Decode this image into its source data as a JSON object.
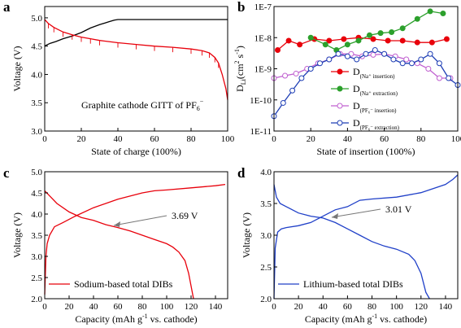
{
  "chart_data": [
    {
      "panel": "a",
      "type": "line",
      "xlabel": "State of charge (100%)",
      "ylabel": "Voltage (V)",
      "xlim": [
        0,
        100
      ],
      "ylim": [
        3.0,
        5.2
      ],
      "xticks": [
        0,
        20,
        40,
        60,
        80,
        100
      ],
      "yticks": [
        3.0,
        3.5,
        4.0,
        4.5,
        5.0
      ],
      "annotation": "Graphite cathode GITT of PF",
      "annotation_sub": "6",
      "annotation_sup": "−",
      "series": [
        {
          "color": "#000000",
          "x": [
            0,
            1,
            3,
            6,
            10,
            15,
            20,
            25,
            30,
            35,
            38,
            40,
            50,
            60,
            70,
            80,
            90,
            100
          ],
          "y": [
            4.5,
            4.52,
            4.55,
            4.58,
            4.63,
            4.68,
            4.74,
            4.82,
            4.88,
            4.93,
            4.96,
            4.97,
            4.97,
            4.97,
            4.97,
            4.97,
            4.97,
            4.97
          ]
        },
        {
          "color": "#e8000b",
          "x": [
            0,
            2,
            5,
            10,
            15,
            20,
            25,
            30,
            40,
            50,
            60,
            70,
            80,
            86,
            90,
            93,
            95,
            97,
            99,
            100
          ],
          "y": [
            4.97,
            4.9,
            4.83,
            4.75,
            4.7,
            4.66,
            4.63,
            4.6,
            4.56,
            4.53,
            4.5,
            4.48,
            4.45,
            4.42,
            4.38,
            4.3,
            4.2,
            4.0,
            3.75,
            3.55
          ]
        }
      ]
    },
    {
      "panel": "b",
      "type": "line",
      "xlabel": "State of insertion (100%)",
      "ylabel": "D",
      "ylabel_sub": "Li",
      "ylabel_unit": "(cm",
      "ylabel_unit_sup1": "2",
      "ylabel_unit_mid": " s",
      "ylabel_unit_sup2": "-1",
      "ylabel_unit_end": ")",
      "yscale": "log",
      "xlim": [
        0,
        100
      ],
      "ylim": [
        1e-11,
        1e-07
      ],
      "xticks": [
        0,
        20,
        40,
        60,
        80,
        100
      ],
      "yticks": [
        1e-11,
        1e-10,
        1e-09,
        1e-08,
        1e-07
      ],
      "ytick_labels": [
        "1E-11",
        "1E-10",
        "1E-9",
        "1E-8",
        "1E-7"
      ],
      "legend_position": "right",
      "series": [
        {
          "name": "D",
          "name_sub": "(Na⁺ insertion)",
          "color": "#e8000b",
          "marker": "filled",
          "x": [
            2,
            8,
            14,
            22,
            30,
            38,
            46,
            54,
            62,
            70,
            78,
            86,
            94
          ],
          "y": [
            4e-09,
            8e-09,
            6e-09,
            9e-09,
            8e-09,
            9e-09,
            1e-08,
            9e-09,
            8e-09,
            8e-09,
            7e-09,
            7e-09,
            9e-09
          ]
        },
        {
          "name": "D",
          "name_sub": "(Na⁺ extraction)",
          "color": "#2ca02c",
          "marker": "filled",
          "x": [
            20,
            28,
            34,
            40,
            46,
            52,
            58,
            64,
            70,
            78,
            85,
            92
          ],
          "y": [
            1e-08,
            6e-09,
            4e-09,
            6e-09,
            8e-09,
            1.2e-08,
            1.4e-08,
            1.5e-08,
            2e-08,
            4e-08,
            7e-08,
            6e-08
          ]
        },
        {
          "name": "D",
          "name_sub": "(PF₆⁻ insertion)",
          "color": "#c060d0",
          "marker": "open",
          "x": [
            0,
            6,
            12,
            18,
            24,
            30,
            36,
            42,
            48,
            54,
            60,
            66,
            72,
            78,
            84,
            90,
            96
          ],
          "y": [
            5e-10,
            6e-10,
            7e-10,
            1e-09,
            1.5e-09,
            2e-09,
            3e-09,
            3e-09,
            2.5e-09,
            2.8e-09,
            3e-09,
            2.5e-09,
            2e-09,
            1.5e-09,
            1e-09,
            5e-10,
            5e-10
          ]
        },
        {
          "name": "D",
          "name_sub": "(PF₆⁻ extraction)",
          "color": "#1f3fb5",
          "marker": "open",
          "x": [
            0,
            5,
            10,
            15,
            20,
            25,
            30,
            35,
            40,
            45,
            50,
            55,
            60,
            65,
            70,
            75,
            80,
            85,
            90,
            95,
            100
          ],
          "y": [
            3e-11,
            8e-11,
            2e-10,
            5e-10,
            1e-09,
            1.5e-09,
            2e-09,
            3e-09,
            2.5e-09,
            2e-09,
            3e-09,
            4e-09,
            3e-09,
            2e-09,
            1.5e-09,
            1.5e-09,
            2e-09,
            3e-09,
            1.5e-09,
            5e-10,
            3e-10
          ]
        }
      ]
    },
    {
      "panel": "c",
      "type": "line",
      "xlabel": "Capacity (mAh g",
      "xlabel_sup": "-1",
      "xlabel_end": " vs. cathode)",
      "ylabel": "Voltage (V)",
      "xlim": [
        0,
        150
      ],
      "ylim": [
        2.0,
        5.0
      ],
      "xticks": [
        0,
        20,
        40,
        60,
        80,
        100,
        120,
        140
      ],
      "yticks": [
        2.0,
        2.5,
        3.0,
        3.5,
        4.0,
        4.5,
        5.0
      ],
      "annotation": "3.69 V",
      "legend_label": "Sodium-based total DIBs",
      "series": [
        {
          "color": "#e8000b",
          "x": [
            0,
            1,
            2,
            4,
            8,
            15,
            25,
            40,
            60,
            80,
            90,
            100,
            120,
            140,
            148
          ],
          "y": [
            2.1,
            3.0,
            3.3,
            3.5,
            3.7,
            3.8,
            3.95,
            4.15,
            4.35,
            4.5,
            4.55,
            4.57,
            4.62,
            4.67,
            4.7
          ]
        },
        {
          "color": "#e8000b",
          "x": [
            0,
            5,
            10,
            20,
            30,
            40,
            50,
            60,
            70,
            80,
            90,
            100,
            105,
            110,
            115,
            118,
            120,
            122
          ],
          "y": [
            4.55,
            4.4,
            4.25,
            4.05,
            3.92,
            3.85,
            3.75,
            3.68,
            3.6,
            3.5,
            3.4,
            3.3,
            3.22,
            3.1,
            2.9,
            2.6,
            2.3,
            2.0
          ]
        }
      ]
    },
    {
      "panel": "d",
      "type": "line",
      "xlabel": "Capacity (mAh g",
      "xlabel_sup": "-1",
      "xlabel_end": " vs. cathode)",
      "ylabel": "Voltage (V)",
      "xlim": [
        0,
        150
      ],
      "ylim": [
        2.0,
        4.0
      ],
      "xticks": [
        0,
        20,
        40,
        60,
        80,
        100,
        120,
        140
      ],
      "yticks": [
        2.0,
        2.5,
        3.0,
        3.5,
        4.0
      ],
      "annotation": "3.01 V",
      "legend_label": "Lithium-based total DIBs",
      "series": [
        {
          "color": "#2040c8",
          "x": [
            0,
            1,
            3,
            6,
            10,
            20,
            30,
            40,
            50,
            60,
            70,
            80,
            100,
            120,
            140,
            146,
            150
          ],
          "y": [
            2.0,
            2.8,
            3.05,
            3.1,
            3.12,
            3.15,
            3.2,
            3.3,
            3.4,
            3.45,
            3.55,
            3.57,
            3.6,
            3.67,
            3.8,
            3.88,
            3.95
          ]
        },
        {
          "color": "#2040c8",
          "x": [
            0,
            2,
            5,
            10,
            20,
            30,
            40,
            50,
            60,
            70,
            80,
            90,
            100,
            110,
            115,
            120,
            124,
            127
          ],
          "y": [
            3.8,
            3.6,
            3.5,
            3.45,
            3.35,
            3.3,
            3.27,
            3.2,
            3.1,
            3.0,
            2.9,
            2.83,
            2.78,
            2.7,
            2.6,
            2.4,
            2.1,
            2.0
          ]
        }
      ]
    }
  ],
  "panel_letters": [
    "a",
    "b",
    "c",
    "d"
  ]
}
